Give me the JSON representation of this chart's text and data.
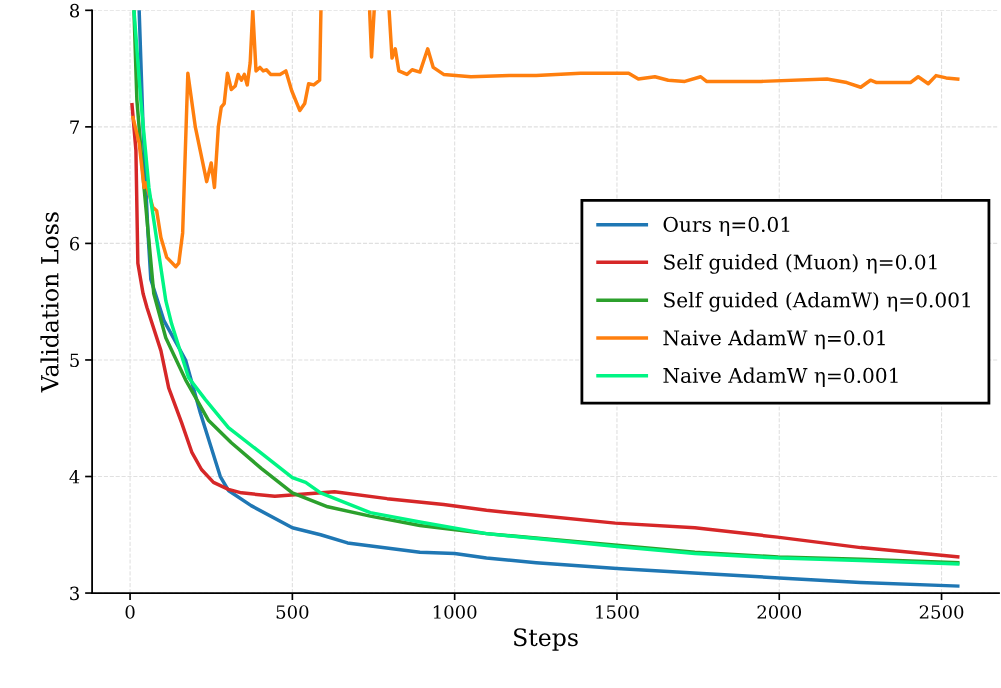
{
  "chart_data": {
    "type": "line",
    "xlabel": "Steps",
    "ylabel": "Validation Loss",
    "xlim": [
      -117,
      2677
    ],
    "ylim": [
      3,
      8
    ],
    "xticks": [
      0,
      500,
      1000,
      1500,
      2000,
      2500
    ],
    "yticks": [
      3,
      4,
      5,
      6,
      7,
      8
    ],
    "grid": true,
    "legend": "center right",
    "line_style": "solid",
    "marker": "none",
    "series": [
      {
        "name": "Ours η=0.01",
        "color": "#1f77b4",
        "x": [
          28,
          40,
          55,
          64,
          104,
          171,
          217,
          278,
          303,
          373,
          500,
          587,
          670,
          893,
          1000,
          1098,
          1251,
          1500,
          1750,
          2000,
          2250,
          2550
        ],
        "values": [
          8.0,
          7.0,
          6.1,
          5.69,
          5.34,
          5.0,
          4.54,
          4.0,
          3.88,
          3.75,
          3.56,
          3.5,
          3.43,
          3.35,
          3.34,
          3.3,
          3.26,
          3.21,
          3.17,
          3.13,
          3.09,
          3.06
        ]
      },
      {
        "name": "Self guided (Muon) η=0.01",
        "color": "#d62728",
        "x": [
          6,
          18,
          24,
          40,
          52,
          95,
          119,
          159,
          190,
          220,
          257,
          303,
          343,
          446,
          630,
          792,
          966,
          1098,
          1242,
          1495,
          1740,
          1994,
          2251,
          2550
        ],
        "values": [
          7.19,
          6.8,
          5.83,
          5.57,
          5.45,
          5.08,
          4.76,
          4.46,
          4.21,
          4.06,
          3.95,
          3.89,
          3.86,
          3.83,
          3.87,
          3.81,
          3.76,
          3.71,
          3.67,
          3.6,
          3.56,
          3.48,
          3.39,
          3.31
        ]
      },
      {
        "name": "Self guided (AdamW) η=0.001",
        "color": "#2ca02c",
        "x": [
          12,
          21,
          43,
          73,
          110,
          171,
          242,
          312,
          404,
          500,
          609,
          740,
          893,
          1098,
          1500,
          1740,
          1997,
          2251,
          2550
        ],
        "values": [
          8.0,
          7.23,
          6.48,
          5.57,
          5.19,
          4.83,
          4.48,
          4.29,
          4.07,
          3.86,
          3.74,
          3.66,
          3.58,
          3.51,
          3.41,
          3.35,
          3.31,
          3.29,
          3.26
        ]
      },
      {
        "name": "Naive AdamW η=0.01",
        "color": "#ff7f0e",
        "x": [
          9,
          28,
          43,
          49,
          70,
          82,
          95,
          113,
          141,
          150,
          162,
          178,
          201,
          236,
          250,
          260,
          272,
          281,
          290,
          300,
          312,
          324,
          333,
          343,
          352,
          361,
          370,
          378,
          388,
          400,
          410,
          420,
          433,
          462,
          480,
          498,
          523,
          538,
          550,
          566,
          584,
          588,
          640,
          738,
          744,
          752,
          770,
          798,
          807,
          817,
          828,
          853,
          869,
          893,
          917,
          934,
          966,
          1050,
          1169,
          1251,
          1388,
          1495,
          1536,
          1566,
          1617,
          1658,
          1709,
          1758,
          1776,
          1944,
          2147,
          2208,
          2251,
          2281,
          2300,
          2404,
          2428,
          2459,
          2483,
          2514,
          2550
        ],
        "values": [
          7.08,
          6.86,
          6.48,
          6.52,
          6.31,
          6.28,
          6.05,
          5.88,
          5.8,
          5.83,
          6.09,
          7.46,
          7.0,
          6.53,
          6.69,
          6.48,
          7.0,
          7.17,
          7.2,
          7.46,
          7.32,
          7.35,
          7.45,
          7.4,
          7.45,
          7.36,
          7.55,
          8.0,
          7.48,
          7.51,
          7.48,
          7.49,
          7.45,
          7.45,
          7.48,
          7.31,
          7.14,
          7.2,
          7.37,
          7.36,
          7.4,
          8.0,
          null,
          8.0,
          7.6,
          8.0,
          null,
          8.0,
          7.59,
          7.67,
          7.48,
          7.45,
          7.49,
          7.47,
          7.67,
          7.51,
          7.45,
          7.43,
          7.44,
          7.44,
          7.46,
          7.46,
          7.46,
          7.41,
          7.43,
          7.4,
          7.39,
          7.43,
          7.39,
          7.39,
          7.41,
          7.38,
          7.34,
          7.4,
          7.38,
          7.38,
          7.43,
          7.37,
          7.44,
          7.42,
          7.41
        ]
      },
      {
        "name": "Naive AdamW η=0.001",
        "color": "#00f584",
        "x": [
          12,
          33,
          58,
          110,
          128,
          180,
          232,
          303,
          404,
          500,
          541,
          587,
          740,
          893,
          1098,
          1500,
          1740,
          2000,
          2250,
          2550
        ],
        "values": [
          8.0,
          7.23,
          6.48,
          5.51,
          5.31,
          4.85,
          4.66,
          4.42,
          4.2,
          3.99,
          3.95,
          3.86,
          3.69,
          3.61,
          3.51,
          3.4,
          3.34,
          3.3,
          3.28,
          3.25
        ]
      }
    ]
  }
}
